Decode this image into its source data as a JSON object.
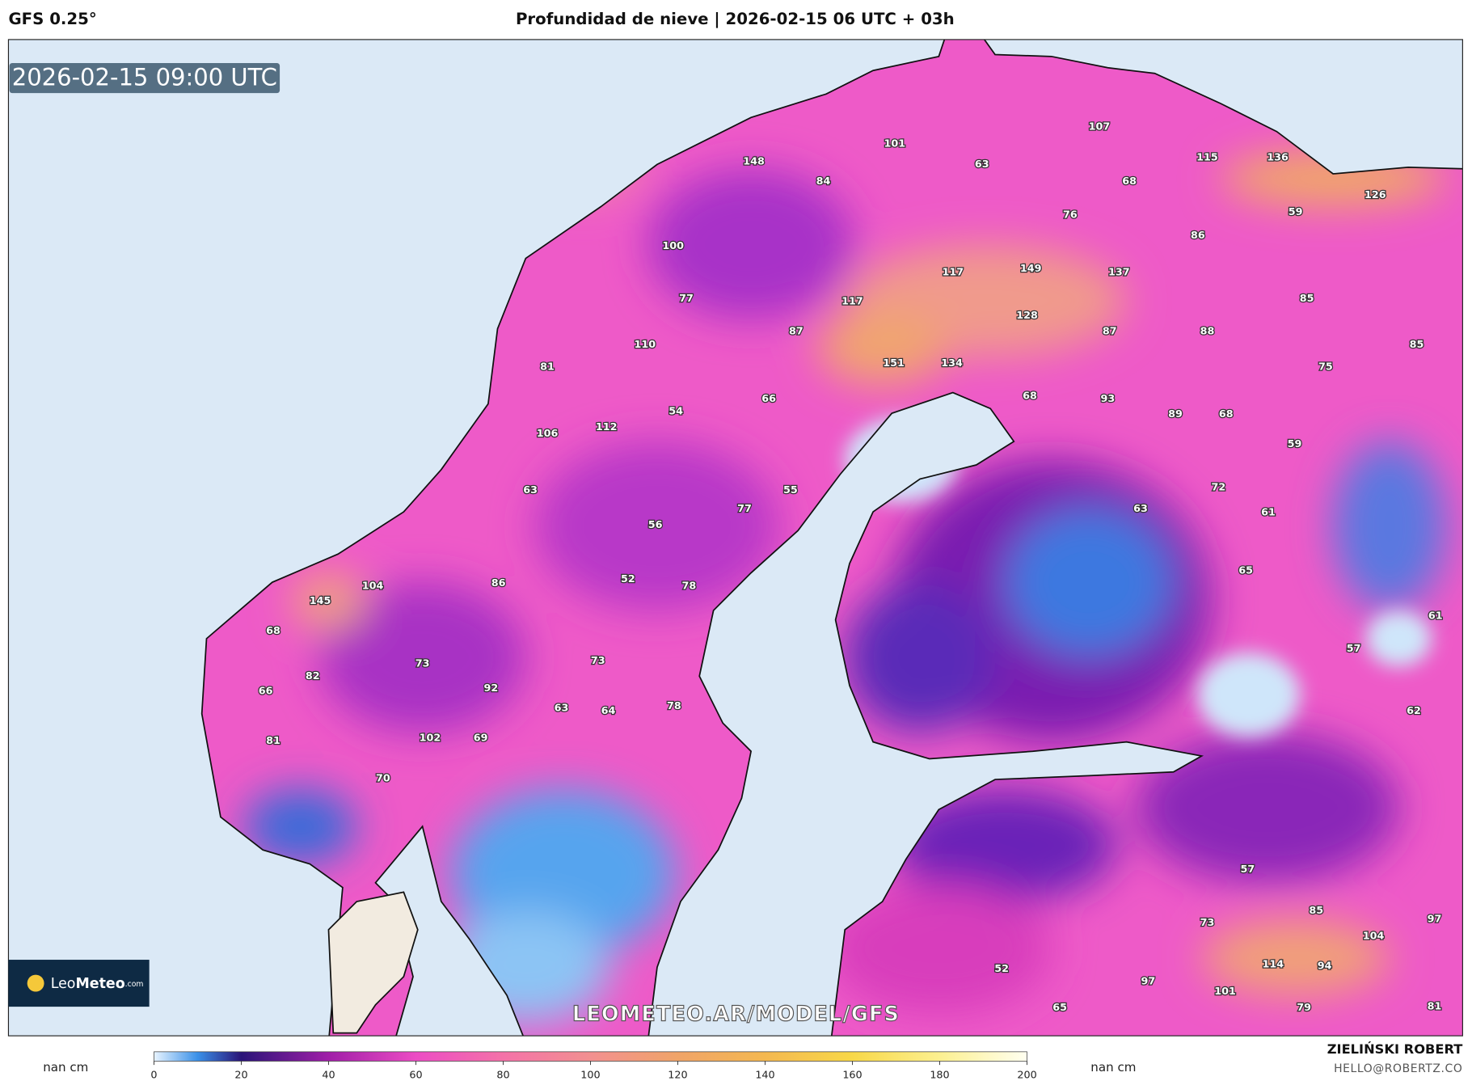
{
  "header": {
    "model": "GFS 0.25°",
    "title": "Profundidad de nieve | 2026-02-15 06 UTC + 03h"
  },
  "map": {
    "timestamp": "2026-02-15 09:00 UTC",
    "watermark": "LEOMETEO.AR/MODEL/GFS",
    "logo": {
      "name_light": "Leo",
      "name_bold": "Meteo",
      "suffix": ".com"
    },
    "labels": [
      148,
      101,
      63,
      107,
      115,
      136,
      84,
      68,
      126,
      76,
      59,
      86,
      100,
      117,
      149,
      137,
      77,
      117,
      85,
      128,
      87,
      87,
      88,
      110,
      85,
      151,
      134,
      75,
      81,
      66,
      68,
      93,
      54,
      89,
      68,
      106,
      112,
      59,
      63,
      55,
      72,
      77,
      63,
      61,
      56,
      86,
      52,
      78,
      104,
      145,
      65,
      61,
      68,
      57,
      73,
      73,
      82,
      92,
      66,
      78,
      63,
      64,
      62,
      102,
      69,
      81,
      70,
      57,
      85,
      97,
      73,
      104,
      114,
      94,
      52,
      97,
      101,
      65,
      79,
      81
    ]
  },
  "colorbar": {
    "range": [
      0,
      200
    ],
    "ticks": [
      0,
      20,
      40,
      60,
      80,
      100,
      120,
      140,
      160,
      180,
      200
    ],
    "unit_left": "nan cm",
    "unit_right": "nan cm"
  },
  "credits": {
    "name": "ZIELIŃSKI ROBERT",
    "contact": "HELLO@ROBERTZ.CO"
  }
}
